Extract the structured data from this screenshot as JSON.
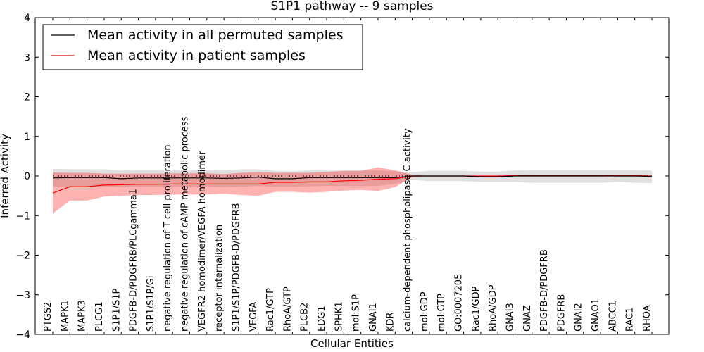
{
  "chart_data": {
    "type": "line",
    "title": "S1P1 pathway -- 9 samples",
    "xlabel": "Cellular Entities",
    "ylabel": "Inferred Activity",
    "ylim": [
      -4,
      4
    ],
    "yticks": [
      "4",
      "3",
      "2",
      "1",
      "0",
      "−1",
      "−2",
      "−3",
      "−4"
    ],
    "grid": false,
    "legend_position": "top-left",
    "categories": [
      "PTGS2",
      "MAPK1",
      "MAPK3",
      "PLCG1",
      "S1P1/S1P",
      "PDGFB-D/PDGFRB/PLCgamma1",
      "S1P1/S1P/Gi",
      "negative regulation of T cell proliferation",
      "negative regulation of cAMP metabolic process",
      "VEGFR2 homodimer/VEGFA homodimer",
      "receptor internalization",
      "S1P1/S1P/PDGFB-D/PDGFRB",
      "VEGFA",
      "Rac1/GTP",
      "RhoA/GTP",
      "PLCB2",
      "EDG1",
      "SPHK1",
      "mol:S1P",
      "GNAI1",
      "KDR",
      "calcium-dependent phospholipase C activity",
      "mol:GDP",
      "mol:GTP",
      "GO:0007205",
      "Rac1/GDP",
      "RhoA/GDP",
      "GNAI3",
      "GNAZ",
      "PDGFB-D/PDGFRB",
      "PDGFRB",
      "GNAI2",
      "GNAO1",
      "ABCC1",
      "RAC1",
      "RHOA"
    ],
    "series": [
      {
        "name": "Mean activity in all permuted samples",
        "color": "#000000",
        "values": [
          -0.05,
          -0.04,
          -0.04,
          -0.04,
          -0.07,
          -0.05,
          -0.05,
          -0.05,
          -0.05,
          -0.05,
          -0.06,
          -0.05,
          -0.03,
          -0.07,
          -0.07,
          -0.04,
          -0.04,
          -0.04,
          -0.04,
          -0.04,
          -0.04,
          0.0,
          0.0,
          0.0,
          0.0,
          -0.02,
          -0.02,
          0.0,
          0.0,
          0.0,
          0.0,
          0.0,
          0.0,
          0.0,
          0.0,
          -0.01
        ],
        "lower": [
          -0.28,
          -0.27,
          -0.27,
          -0.27,
          -0.28,
          -0.27,
          -0.27,
          -0.27,
          -0.27,
          -0.27,
          -0.28,
          -0.27,
          -0.25,
          -0.27,
          -0.27,
          -0.26,
          -0.25,
          -0.25,
          -0.25,
          -0.25,
          -0.2,
          -0.1,
          -0.13,
          -0.13,
          -0.13,
          -0.15,
          -0.15,
          -0.15,
          -0.17,
          -0.17,
          -0.17,
          -0.17,
          -0.17,
          -0.15,
          -0.17,
          -0.18
        ],
        "upper": [
          0.18,
          0.17,
          0.17,
          0.17,
          0.14,
          0.15,
          0.15,
          0.15,
          0.15,
          0.15,
          0.14,
          0.17,
          0.17,
          0.13,
          0.12,
          0.14,
          0.14,
          0.14,
          0.14,
          0.14,
          0.12,
          0.1,
          0.13,
          0.13,
          0.13,
          0.11,
          0.11,
          0.14,
          0.15,
          0.15,
          0.15,
          0.15,
          0.15,
          0.15,
          0.15,
          0.14
        ],
        "reference": [
          0.0,
          0.0,
          0.0,
          0.0,
          0.0,
          0.0,
          0.0,
          0.0,
          0.0,
          0.0,
          0.0,
          0.0,
          0.0,
          0.0,
          0.0,
          0.0,
          0.0,
          0.0,
          0.0,
          0.0,
          0.0,
          0.0,
          0.0,
          0.0,
          0.0,
          0.0,
          0.0,
          0.0,
          0.0,
          0.0,
          0.0,
          0.0,
          0.0,
          0.0,
          0.0,
          0.0
        ]
      },
      {
        "name": "Mean activity in patient samples",
        "color": "#ff0000",
        "values": [
          -0.43,
          -0.27,
          -0.27,
          -0.23,
          -0.22,
          -0.21,
          -0.21,
          -0.2,
          -0.2,
          -0.2,
          -0.2,
          -0.2,
          -0.2,
          -0.16,
          -0.16,
          -0.15,
          -0.15,
          -0.12,
          -0.11,
          -0.08,
          -0.07,
          0.0,
          0.0,
          0.0,
          0.0,
          0.0,
          0.0,
          0.01,
          0.01,
          0.01,
          0.01,
          0.01,
          0.01,
          0.02,
          0.02,
          0.02
        ],
        "lower": [
          -0.95,
          -0.62,
          -0.62,
          -0.52,
          -0.5,
          -0.48,
          -0.48,
          -0.47,
          -0.47,
          -0.47,
          -0.45,
          -0.48,
          -0.5,
          -0.4,
          -0.4,
          -0.42,
          -0.4,
          -0.37,
          -0.35,
          -0.38,
          -0.28,
          -0.03,
          0.0,
          0.0,
          0.0,
          0.0,
          0.0,
          0.01,
          0.01,
          0.01,
          0.01,
          0.01,
          0.01,
          0.02,
          0.02,
          0.02
        ],
        "upper": [
          0.09,
          0.08,
          0.08,
          0.06,
          0.06,
          0.06,
          0.06,
          0.07,
          0.07,
          0.07,
          0.05,
          0.08,
          0.1,
          0.08,
          0.08,
          0.08,
          0.1,
          0.13,
          0.13,
          0.22,
          0.14,
          0.03,
          0.0,
          0.0,
          0.0,
          0.0,
          0.0,
          0.01,
          0.01,
          0.01,
          0.01,
          0.01,
          0.01,
          0.02,
          0.02,
          0.02
        ]
      }
    ]
  }
}
